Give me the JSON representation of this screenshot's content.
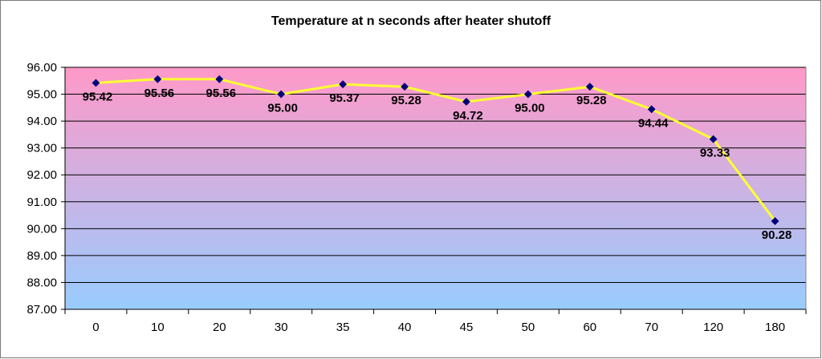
{
  "chart_data": {
    "type": "line",
    "title": "Temperature at n seconds after heater shutoff",
    "xlabel": "",
    "ylabel": "",
    "categories": [
      "0",
      "10",
      "20",
      "30",
      "35",
      "40",
      "45",
      "50",
      "60",
      "70",
      "120",
      "180"
    ],
    "series": [
      {
        "values": [
          95.42,
          95.56,
          95.56,
          95.0,
          95.37,
          95.28,
          94.72,
          95.0,
          95.28,
          94.44,
          93.33,
          90.28
        ],
        "labels": [
          "95.42",
          "95.56",
          "95.56",
          "95.00",
          "95.37",
          "95.28",
          "94.72",
          "95.00",
          "95.28",
          "94.44",
          "93.33",
          "90.28"
        ]
      }
    ],
    "ylim": [
      87,
      96
    ],
    "y_ticks": [
      "87.00",
      "88.00",
      "89.00",
      "90.00",
      "91.00",
      "92.00",
      "93.00",
      "94.00",
      "95.00",
      "96.00"
    ],
    "grid": true,
    "legend": "none",
    "colors": {
      "line": "#ffff33",
      "marker": "#00007a",
      "plot_top": "#ff99c8",
      "plot_bottom": "#99ccff",
      "gridline": "#000000"
    }
  }
}
